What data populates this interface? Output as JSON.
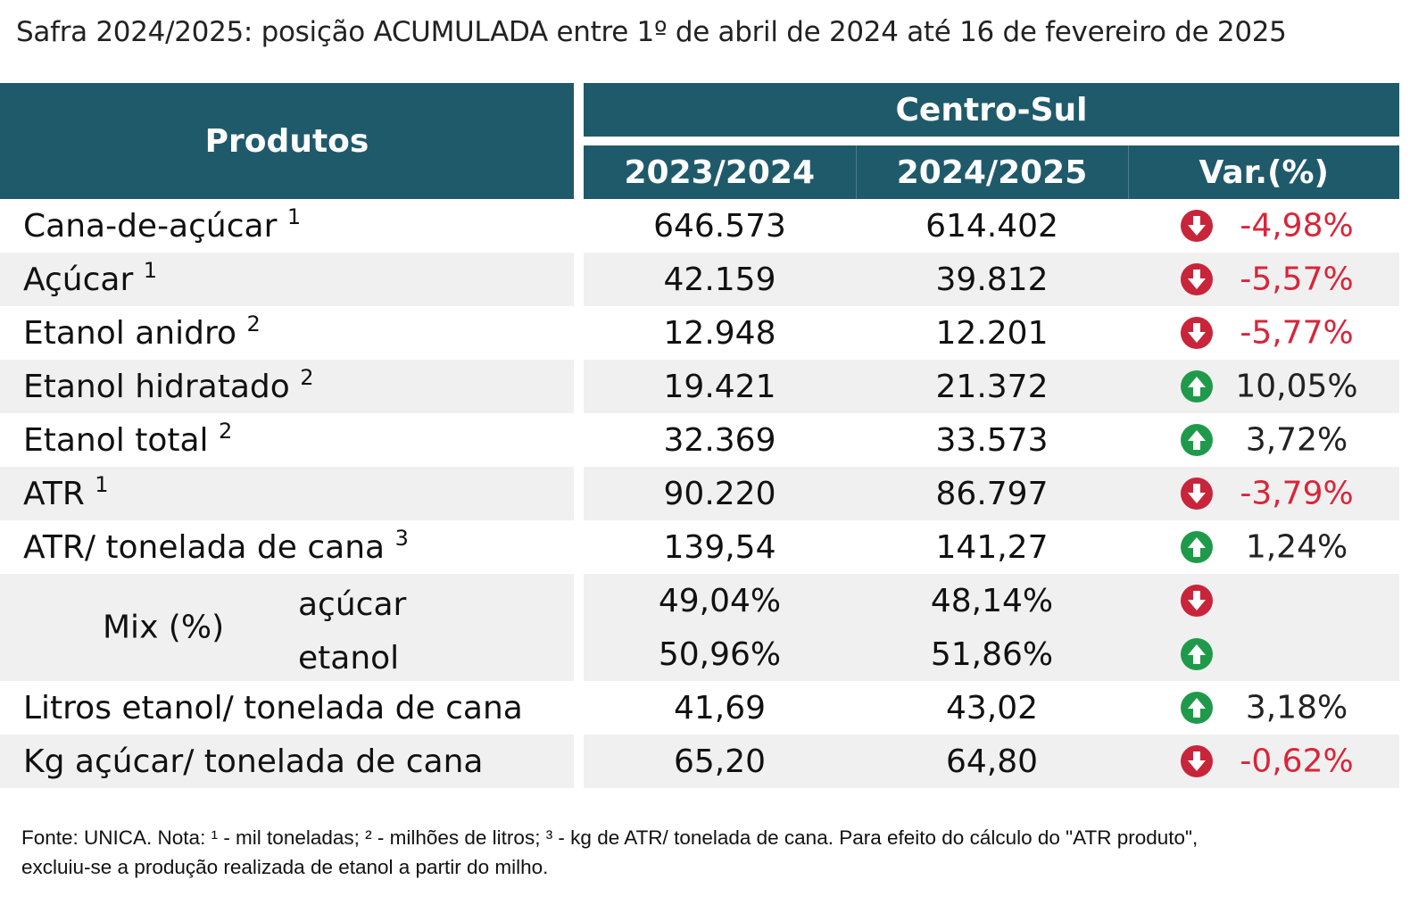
{
  "title": "Safra 2024/2025: posição ACUMULADA entre 1º de abril de 2024 até 16 de fevereiro de 2025",
  "header": {
    "products": "Produtos",
    "region": "Centro-Sul",
    "col_2023": "2023/2024",
    "col_2024": "2024/2025",
    "col_var": "Var.(%)"
  },
  "rows": [
    {
      "label": "Cana-de-açúcar",
      "sup": "1",
      "v2023": "646.573",
      "v2024": "614.402",
      "trend": "down",
      "var": "-4,98%"
    },
    {
      "label": "Açúcar",
      "sup": "1",
      "v2023": "42.159",
      "v2024": "39.812",
      "trend": "down",
      "var": "-5,57%"
    },
    {
      "label": "Etanol anidro",
      "sup": "2",
      "v2023": "12.948",
      "v2024": "12.201",
      "trend": "down",
      "var": "-5,77%"
    },
    {
      "label": "Etanol hidratado",
      "sup": "2",
      "v2023": "19.421",
      "v2024": "21.372",
      "trend": "up",
      "var": "10,05%"
    },
    {
      "label": "Etanol total",
      "sup": "2",
      "v2023": "32.369",
      "v2024": "33.573",
      "trend": "up",
      "var": "3,72%"
    },
    {
      "label": "ATR",
      "sup": "1",
      "v2023": "90.220",
      "v2024": "86.797",
      "trend": "down",
      "var": "-3,79%"
    },
    {
      "label": "ATR/ tonelada de cana",
      "sup": "3",
      "v2023": "139,54",
      "v2024": "141,27",
      "trend": "up",
      "var": "1,24%"
    }
  ],
  "mix": {
    "label": "Mix (%)",
    "sugar": {
      "label": "açúcar",
      "v2023": "49,04%",
      "v2024": "48,14%",
      "trend": "down"
    },
    "ethanol": {
      "label": "etanol",
      "v2023": "50,96%",
      "v2024": "51,86%",
      "trend": "up"
    }
  },
  "rows_after": [
    {
      "label": "Litros etanol/ tonelada de cana",
      "v2023": "41,69",
      "v2024": "43,02",
      "trend": "up",
      "var": "3,18%"
    },
    {
      "label": "Kg açúcar/ tonelada de cana",
      "v2023": "65,20",
      "v2024": "64,80",
      "trend": "down",
      "var": "-0,62%"
    }
  ],
  "colors": {
    "header_bg": "#1f5a6b",
    "down": "#c8243a",
    "up": "#1f9a4a",
    "negative_text": "#d9253a",
    "shade": "#f0f0f0"
  },
  "icons": {
    "down": "arrow-down-circle-icon",
    "up": "arrow-up-circle-icon"
  },
  "footer": {
    "line1": "Fonte: UNICA. Nota: ¹ - mil toneladas; ² - milhões de litros; ³ - kg de ATR/ tonelada de cana. Para efeito do cálculo do \"ATR produto\",",
    "line2": "excluiu-se a produção realizada de etanol a partir do milho."
  }
}
